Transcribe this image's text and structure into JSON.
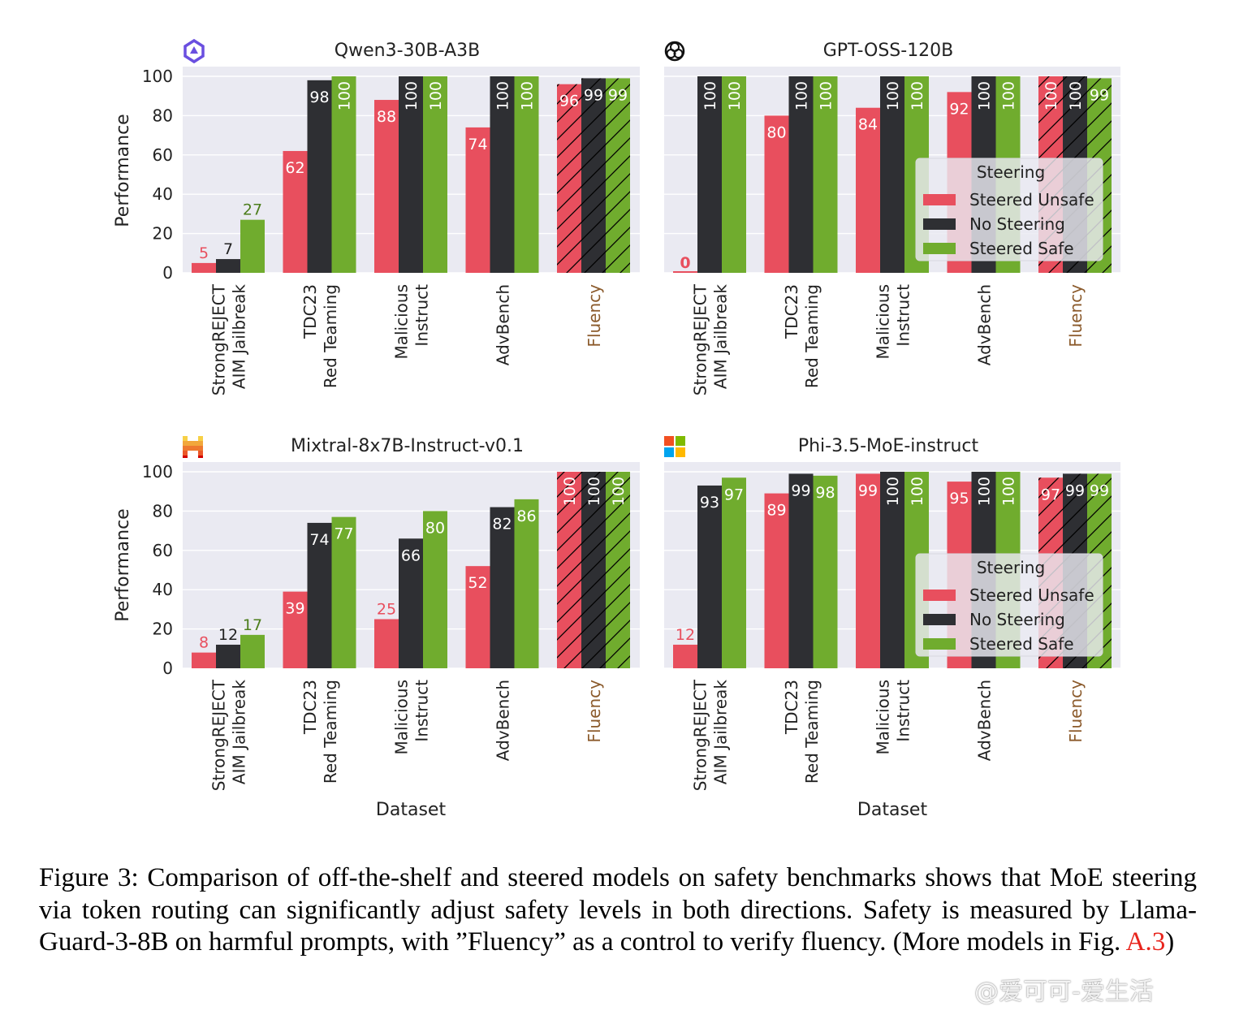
{
  "colors": {
    "steered_unsafe": "#e84f5e",
    "no_steering": "#2e2f33",
    "steered_safe": "#70ac2e",
    "panel_bg": "#eaeaf2",
    "fluency_label": "#8b5a2b"
  },
  "legend": {
    "title": "Steering",
    "items": [
      "Steered Unsafe",
      "No Steering",
      "Steered Safe"
    ]
  },
  "ylabel": "Performance",
  "xlabel": "Dataset",
  "chart_data": [
    {
      "type": "bar",
      "title": "Qwen3-30B-A3B",
      "icon": "qwen-logo-icon",
      "categories": [
        [
          "StrongREJECT",
          "AIM Jailbreak"
        ],
        [
          "TDC23",
          "Red Teaming"
        ],
        [
          "Malicious",
          "Instruct"
        ],
        [
          "AdvBench"
        ],
        [
          "Fluency"
        ]
      ],
      "series": [
        {
          "name": "Steered Unsafe",
          "values": [
            5,
            62,
            88,
            74,
            96
          ]
        },
        {
          "name": "No Steering",
          "values": [
            7,
            98,
            100,
            100,
            99
          ]
        },
        {
          "name": "Steered Safe",
          "values": [
            27,
            100,
            100,
            100,
            99
          ]
        }
      ],
      "ylim": [
        0,
        100
      ],
      "yticks": [
        0,
        20,
        40,
        60,
        80,
        100
      ],
      "legend": false,
      "hatched_category": "Fluency"
    },
    {
      "type": "bar",
      "title": "GPT-OSS-120B",
      "icon": "openai-logo-icon",
      "categories": [
        [
          "StrongREJECT",
          "AIM Jailbreak"
        ],
        [
          "TDC23",
          "Red Teaming"
        ],
        [
          "Malicious",
          "Instruct"
        ],
        [
          "AdvBench"
        ],
        [
          "Fluency"
        ]
      ],
      "series": [
        {
          "name": "Steered Unsafe",
          "values": [
            0,
            80,
            84,
            92,
            100
          ]
        },
        {
          "name": "No Steering",
          "values": [
            100,
            100,
            100,
            100,
            100
          ]
        },
        {
          "name": "Steered Safe",
          "values": [
            100,
            100,
            100,
            100,
            99
          ]
        }
      ],
      "ylim": [
        0,
        100
      ],
      "legend": true,
      "legend_position": "center-right",
      "hatched_category": "Fluency"
    },
    {
      "type": "bar",
      "title": "Mixtral-8x7B-Instruct-v0.1",
      "icon": "mistral-logo-icon",
      "categories": [
        [
          "StrongREJECT",
          "AIM Jailbreak"
        ],
        [
          "TDC23",
          "Red Teaming"
        ],
        [
          "Malicious",
          "Instruct"
        ],
        [
          "AdvBench"
        ],
        [
          "Fluency"
        ]
      ],
      "series": [
        {
          "name": "Steered Unsafe",
          "values": [
            8,
            39,
            25,
            52,
            100
          ]
        },
        {
          "name": "No Steering",
          "values": [
            12,
            74,
            66,
            82,
            100
          ]
        },
        {
          "name": "Steered Safe",
          "values": [
            17,
            77,
            80,
            86,
            100
          ]
        }
      ],
      "ylim": [
        0,
        100
      ],
      "yticks": [
        0,
        20,
        40,
        60,
        80,
        100
      ],
      "legend": false,
      "hatched_category": "Fluency"
    },
    {
      "type": "bar",
      "title": "Phi-3.5-MoE-instruct",
      "icon": "microsoft-logo-icon",
      "categories": [
        [
          "StrongREJECT",
          "AIM Jailbreak"
        ],
        [
          "TDC23",
          "Red Teaming"
        ],
        [
          "Malicious",
          "Instruct"
        ],
        [
          "AdvBench"
        ],
        [
          "Fluency"
        ]
      ],
      "series": [
        {
          "name": "Steered Unsafe",
          "values": [
            12,
            89,
            99,
            95,
            97
          ]
        },
        {
          "name": "No Steering",
          "values": [
            93,
            99,
            100,
            100,
            99
          ]
        },
        {
          "name": "Steered Safe",
          "values": [
            97,
            98,
            100,
            100,
            99
          ]
        }
      ],
      "ylim": [
        0,
        100
      ],
      "legend": true,
      "legend_position": "center-right",
      "hatched_category": "Fluency"
    }
  ],
  "caption": {
    "text": "Figure 3: Comparison of off-the-shelf and steered models on safety benchmarks shows that MoE steering via token routing can significantly adjust safety levels in both directions. Safety is measured by Llama-Guard-3-8B on harmful prompts, with ”Fluency” as a control to verify fluency. (More models in Fig. ",
    "ref": "A.3",
    "end": ")"
  },
  "watermark": "@爱可可-爱生活"
}
